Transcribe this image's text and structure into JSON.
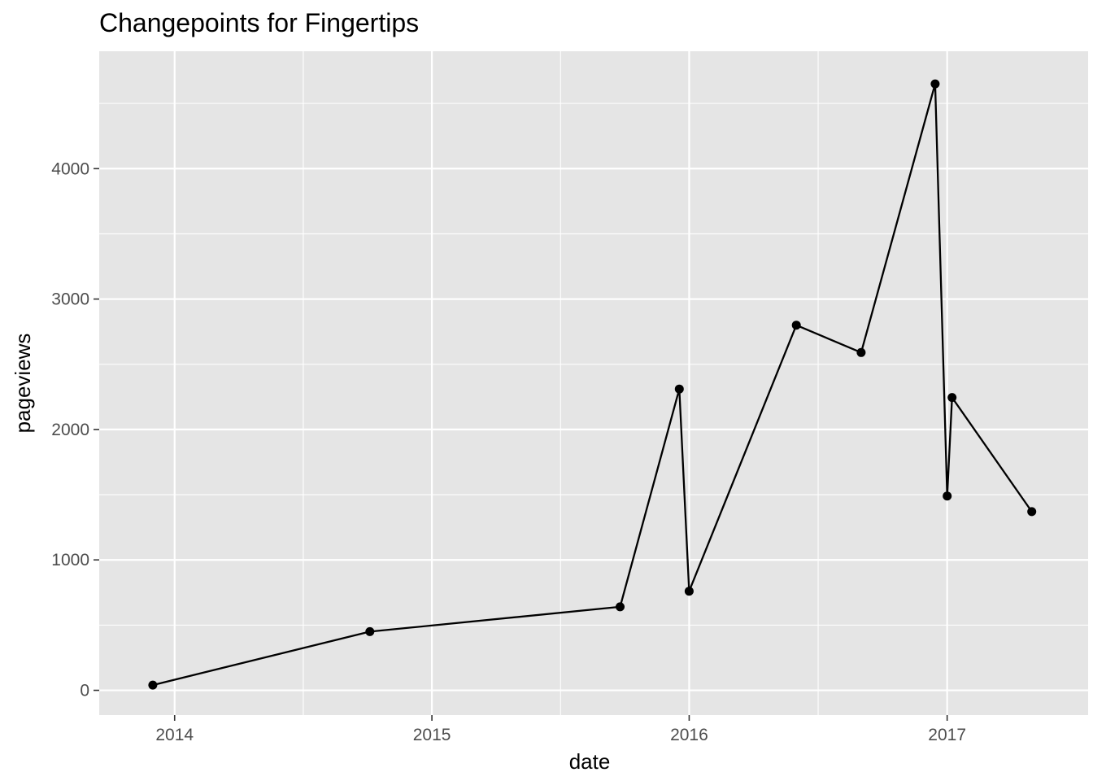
{
  "chart_data": {
    "type": "line",
    "title": "Changepoints for Fingertips",
    "xlabel": "date",
    "ylabel": "pageviews",
    "x_is_date": true,
    "x_ticks": [
      "2014",
      "2015",
      "2016",
      "2017"
    ],
    "y_ticks": [
      "0",
      "1000",
      "2000",
      "3000",
      "4000"
    ],
    "xlim": [
      "2013-09-16",
      "2017-07-20"
    ],
    "ylim": [
      -190,
      4900
    ],
    "grid": true,
    "legend": "none",
    "colors": {
      "panel": "#e5e5e5",
      "grid": "#ffffff",
      "line": "#000000",
      "point": "#000000",
      "tick_text": "#4d4d4d",
      "tick_mark": "#333333"
    },
    "series": [
      {
        "x": [
          "2013-12-01",
          "2014-10-05",
          "2015-09-25",
          "2015-12-18",
          "2016-01-01",
          "2016-06-01",
          "2016-09-01",
          "2016-12-15",
          "2017-01-01",
          "2017-01-08",
          "2017-05-01"
        ],
        "y": [
          40,
          450,
          640,
          2310,
          760,
          2800,
          2590,
          4650,
          1490,
          2245,
          1370
        ]
      }
    ]
  }
}
